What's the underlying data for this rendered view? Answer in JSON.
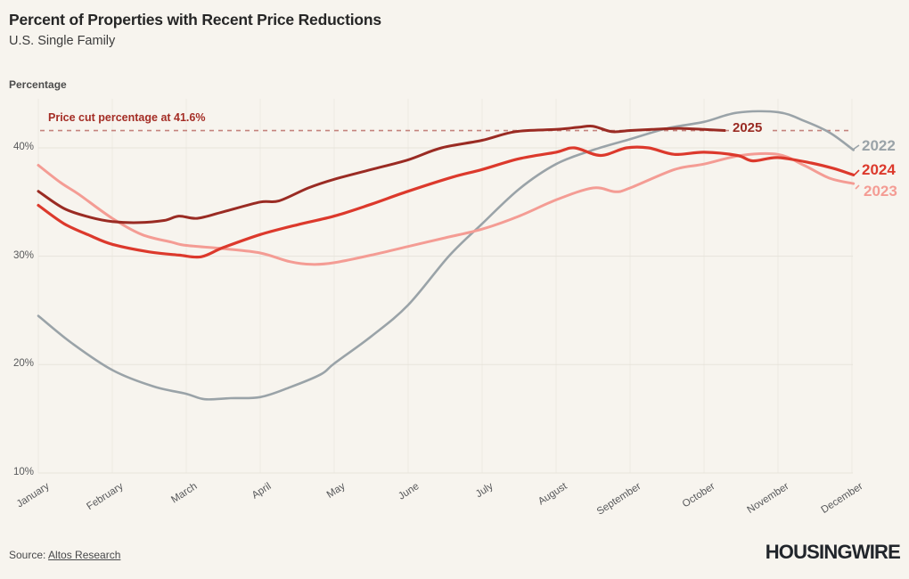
{
  "header": {
    "title": "Percent of Properties with Recent Price Reductions",
    "subtitle": "U.S. Single Family"
  },
  "chart_data": {
    "type": "line",
    "title": "Percent of Properties with Recent Price Reductions",
    "subtitle": "U.S. Single Family",
    "ylabel": "Percentage",
    "xlabel": "",
    "grid": true,
    "legend_position": "line-end-labels-right",
    "x_categories": [
      "January",
      "February",
      "March",
      "April",
      "May",
      "June",
      "July",
      "August",
      "September",
      "October",
      "November",
      "December"
    ],
    "y_ticks": [
      40,
      30,
      20,
      10
    ],
    "y_tick_labels": [
      "40%",
      "30%",
      "20%",
      "10%"
    ],
    "ylim": [
      10,
      44.5
    ],
    "annotation": {
      "label": "Price cut percentage at 41.6%",
      "value": 41.6,
      "line_color": "#c4837d",
      "text_color": "#a42d25"
    },
    "series": [
      {
        "name": "2022",
        "color": "#9aa3a8",
        "width": 2.6,
        "points": [
          [
            0,
            24.5
          ],
          [
            0.45,
            22.0
          ],
          [
            1,
            19.5
          ],
          [
            1.55,
            18.0
          ],
          [
            2,
            17.3
          ],
          [
            2.25,
            16.8
          ],
          [
            2.6,
            16.9
          ],
          [
            3,
            17.0
          ],
          [
            3.4,
            17.9
          ],
          [
            3.82,
            19.1
          ],
          [
            4,
            20.1
          ],
          [
            4.5,
            22.6
          ],
          [
            5,
            25.5
          ],
          [
            5.55,
            30.0
          ],
          [
            6,
            33.0
          ],
          [
            6.5,
            36.2
          ],
          [
            7,
            38.5
          ],
          [
            7.5,
            39.8
          ],
          [
            8,
            40.8
          ],
          [
            8.5,
            41.8
          ],
          [
            9,
            42.4
          ],
          [
            9.45,
            43.25
          ],
          [
            10,
            43.3
          ],
          [
            10.35,
            42.5
          ],
          [
            10.7,
            41.4
          ],
          [
            11.02,
            39.8
          ]
        ]
      },
      {
        "name": "2023",
        "color": "#f49c94",
        "width": 3,
        "points": [
          [
            0,
            38.4
          ],
          [
            0.3,
            36.8
          ],
          [
            0.55,
            35.7
          ],
          [
            1,
            33.5
          ],
          [
            1.4,
            32.0
          ],
          [
            1.8,
            31.3
          ],
          [
            2,
            31.0
          ],
          [
            2.5,
            30.7
          ],
          [
            3,
            30.3
          ],
          [
            3.4,
            29.5
          ],
          [
            3.7,
            29.25
          ],
          [
            4,
            29.4
          ],
          [
            4.5,
            30.1
          ],
          [
            5,
            30.9
          ],
          [
            5.5,
            31.7
          ],
          [
            6,
            32.5
          ],
          [
            6.5,
            33.7
          ],
          [
            7,
            35.2
          ],
          [
            7.5,
            36.3
          ],
          [
            7.8,
            35.95
          ],
          [
            8,
            36.3
          ],
          [
            8.6,
            38.0
          ],
          [
            9,
            38.5
          ],
          [
            9.5,
            39.3
          ],
          [
            10,
            39.4
          ],
          [
            10.35,
            38.4
          ],
          [
            10.7,
            37.2
          ],
          [
            11.02,
            36.7
          ]
        ]
      },
      {
        "name": "2024",
        "color": "#dc392c",
        "width": 3.2,
        "points": [
          [
            0,
            34.7
          ],
          [
            0.35,
            33.0
          ],
          [
            0.7,
            31.9
          ],
          [
            1,
            31.1
          ],
          [
            1.5,
            30.4
          ],
          [
            1.9,
            30.1
          ],
          [
            2.2,
            29.95
          ],
          [
            2.5,
            30.8
          ],
          [
            3,
            32.0
          ],
          [
            3.5,
            32.9
          ],
          [
            4,
            33.7
          ],
          [
            4.5,
            34.8
          ],
          [
            5,
            36.0
          ],
          [
            5.6,
            37.3
          ],
          [
            6,
            38.0
          ],
          [
            6.5,
            39.0
          ],
          [
            7,
            39.6
          ],
          [
            7.25,
            40.0
          ],
          [
            7.6,
            39.3
          ],
          [
            7.95,
            40.0
          ],
          [
            8.25,
            40.0
          ],
          [
            8.6,
            39.4
          ],
          [
            9,
            39.6
          ],
          [
            9.45,
            39.3
          ],
          [
            9.66,
            38.8
          ],
          [
            10,
            39.1
          ],
          [
            10.45,
            38.6
          ],
          [
            10.75,
            38.1
          ],
          [
            11.02,
            37.5
          ]
        ]
      },
      {
        "name": "2025",
        "color": "#9a2b23",
        "width": 3,
        "points": [
          [
            0,
            36.0
          ],
          [
            0.35,
            34.4
          ],
          [
            0.7,
            33.6
          ],
          [
            1,
            33.2
          ],
          [
            1.35,
            33.1
          ],
          [
            1.7,
            33.3
          ],
          [
            1.9,
            33.7
          ],
          [
            2.15,
            33.5
          ],
          [
            2.5,
            34.1
          ],
          [
            3,
            35.0
          ],
          [
            3.25,
            35.1
          ],
          [
            3.65,
            36.3
          ],
          [
            4,
            37.1
          ],
          [
            4.5,
            38.0
          ],
          [
            5,
            38.9
          ],
          [
            5.45,
            40.0
          ],
          [
            6,
            40.7
          ],
          [
            6.45,
            41.5
          ],
          [
            7,
            41.7
          ],
          [
            7.3,
            41.9
          ],
          [
            7.5,
            42.0
          ],
          [
            7.75,
            41.5
          ],
          [
            8,
            41.6
          ],
          [
            8.3,
            41.7
          ],
          [
            8.65,
            41.8
          ],
          [
            9,
            41.7
          ],
          [
            9.28,
            41.6
          ]
        ]
      }
    ]
  },
  "footer": {
    "source_prefix": "Source: ",
    "source_link": "Altos Research",
    "logo": "HOUSINGWIRE"
  }
}
